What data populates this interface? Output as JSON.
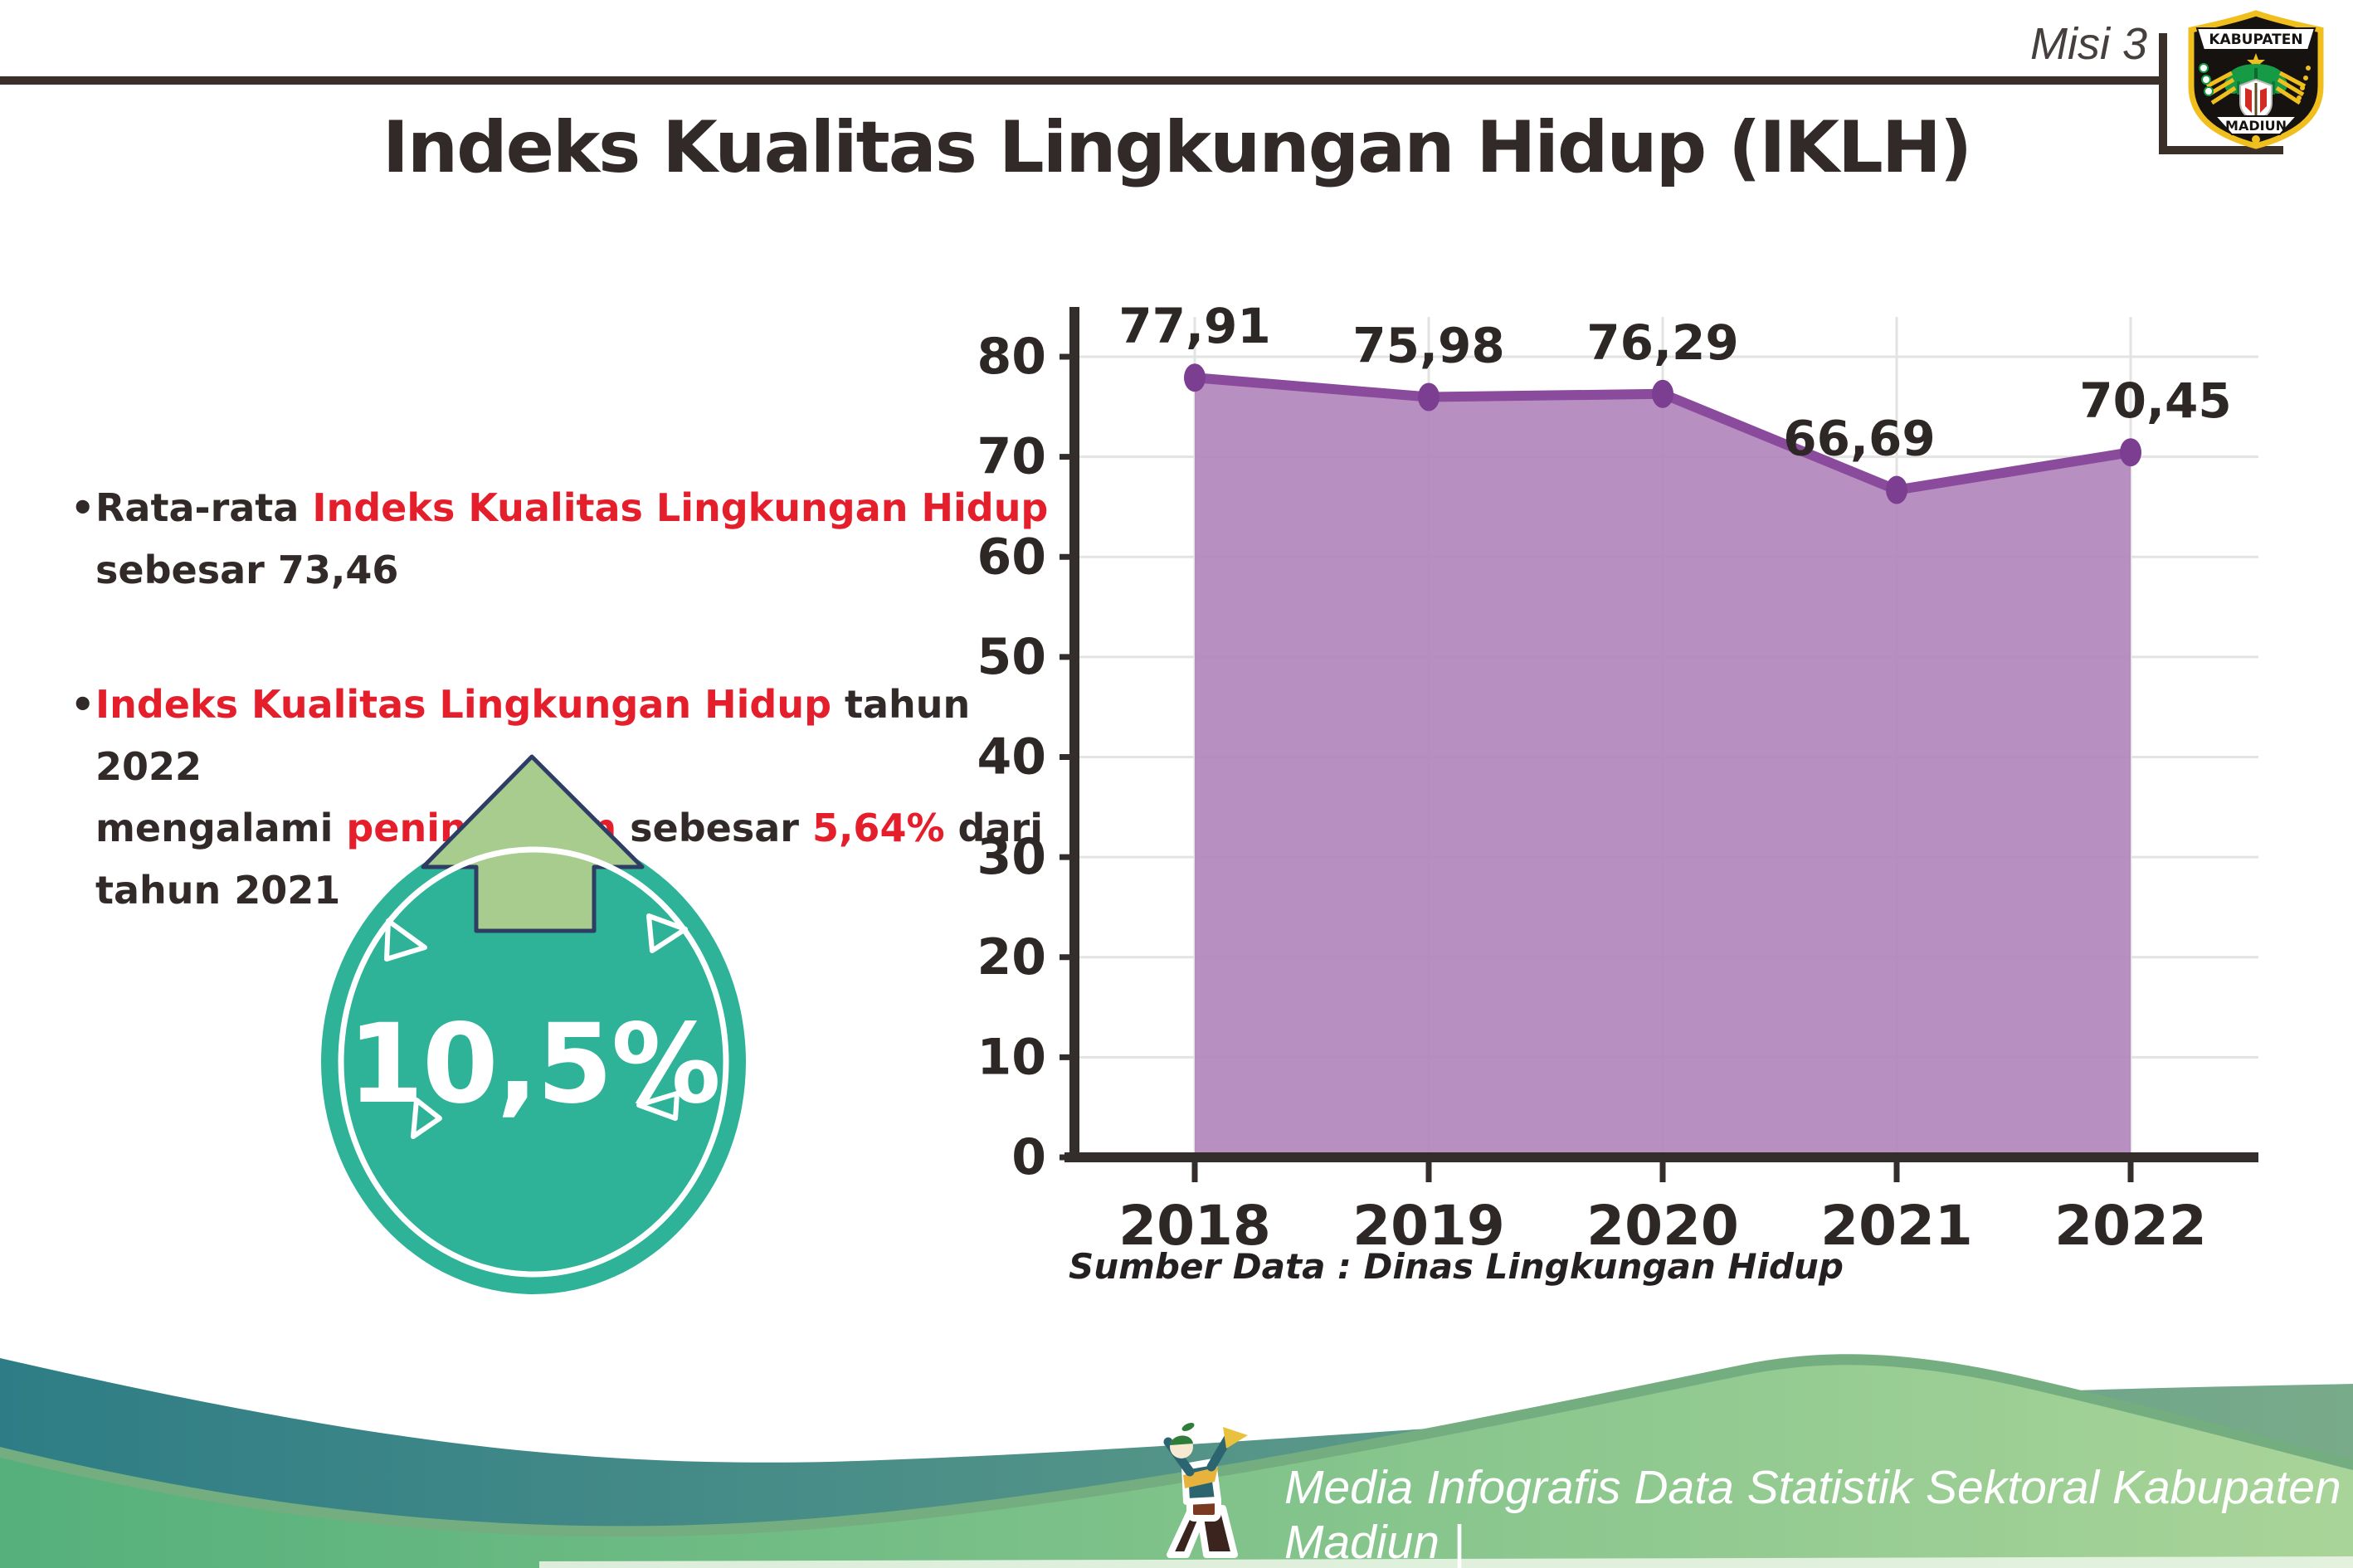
{
  "header": {
    "misi_label": "Misi 3",
    "logo": {
      "top_text": "KABUPATEN",
      "bottom_text": "MADIUN"
    }
  },
  "title": "Indeks Kualitas Lingkungan Hidup (IKLH)",
  "bullets": [
    {
      "segments": [
        {
          "t": "Rata-rata ",
          "c": "dark"
        },
        {
          "t": "Indeks Kualitas Lingkungan Hidup",
          "c": "red"
        },
        {
          "br": true
        },
        {
          "t": "sebesar 73,46",
          "c": "dark"
        }
      ]
    },
    {
      "segments": [
        {
          "t": "Indeks Kualitas Lingkungan Hidup",
          "c": "red"
        },
        {
          "t": " tahun 2022",
          "c": "dark"
        },
        {
          "br": true
        },
        {
          "t": "mengalami ",
          "c": "dark"
        },
        {
          "t": "peningkatan",
          "c": "red"
        },
        {
          "t": " sebesar ",
          "c": "dark"
        },
        {
          "t": "5,64%",
          "c": "red"
        },
        {
          "t": " dari",
          "c": "dark"
        },
        {
          "br": true
        },
        {
          "t": "tahun 2021",
          "c": "dark"
        }
      ]
    }
  ],
  "badge": {
    "value": "10,5%",
    "direction": "up"
  },
  "chart_data": {
    "type": "area",
    "title": "",
    "categories": [
      "2018",
      "2019",
      "2020",
      "2021",
      "2022"
    ],
    "values": [
      77.91,
      75.98,
      76.29,
      66.69,
      70.45
    ],
    "value_labels": [
      "77,91",
      "75,98",
      "76,29",
      "66,69",
      "70,45"
    ],
    "xlabel": "",
    "ylabel": "",
    "ylim": [
      0,
      80
    ],
    "ytick_step": 10,
    "grid": true,
    "legend": false
  },
  "source_note": "Sumber Data : Dinas Lingkungan Hidup",
  "footer": {
    "caption": "Media Infografis Data Statistik Sektoral Kabupaten Madiun |"
  },
  "colors": {
    "dark_text": "#312a28",
    "red_text": "#e51e2c",
    "axis": "#332d2b",
    "axis_text": "#2d2826",
    "grid": "#e3e3e3",
    "line": "#8a4b9d",
    "marker": "#7c3e91",
    "area_fill": "#b285bc",
    "badge_teal": "#2fb398",
    "arrow_green": "#a7cc8e",
    "arrow_outline": "#2e3d63",
    "wave_teal_left": "#2e7d86",
    "wave_teal_right": "#79ab8a",
    "wave_green_left": "#55b07b",
    "wave_green_right": "#a9d499",
    "wave_green_rim": "#74ad7f",
    "logo_gold": "#f0bf1e",
    "footer_text": "#ffffff"
  }
}
